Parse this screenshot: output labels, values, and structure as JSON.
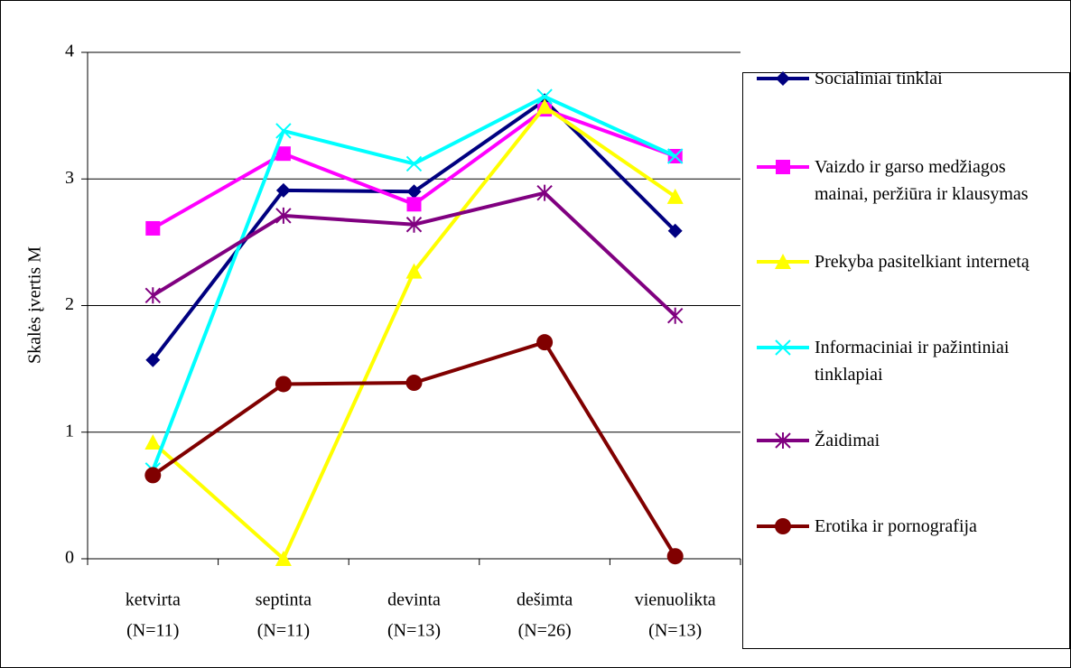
{
  "chart_data": {
    "type": "line",
    "y_label": "Skalės įvertis M",
    "categories": [
      [
        "ketvirta",
        "(N=11)"
      ],
      [
        "septinta",
        "(N=11)"
      ],
      [
        "devinta",
        "(N=13)"
      ],
      [
        "dešimta",
        "(N=26)"
      ],
      [
        "vienuolikta",
        "(N=13)"
      ]
    ],
    "series": [
      {
        "name": "Socialiniai tinklai",
        "color": "#000080",
        "marker": "diamond",
        "values": [
          1.57,
          2.91,
          2.9,
          3.62,
          2.59
        ]
      },
      {
        "name": "Vaizdo ir garso medžiagos mainai, peržiūra ir klausymas",
        "color": "#ff00ff",
        "marker": "square",
        "values": [
          2.61,
          3.2,
          2.8,
          3.55,
          3.18
        ]
      },
      {
        "name": "Prekyba pasitelkiant internetą",
        "color": "#ffff00",
        "marker": "triangle",
        "values": [
          0.92,
          0,
          2.27,
          3.57,
          2.86
        ]
      },
      {
        "name": "Informaciniai ir pažintiniai tinklapiai",
        "color": "#00ffff",
        "marker": "x",
        "values": [
          0.7,
          3.38,
          3.12,
          3.65,
          3.18
        ]
      },
      {
        "name": "Žaidimai",
        "color": "#800080",
        "marker": "star",
        "values": [
          2.08,
          2.71,
          2.64,
          2.89,
          1.92
        ]
      },
      {
        "name": "Erotika ir pornografija",
        "color": "#800000",
        "marker": "circle",
        "values": [
          0.66,
          1.38,
          1.39,
          1.71,
          0.02
        ]
      }
    ],
    "ylim": [
      0,
      4
    ],
    "yticks": [
      0,
      1,
      2,
      3,
      4
    ],
    "grid": true,
    "legend": "right"
  }
}
